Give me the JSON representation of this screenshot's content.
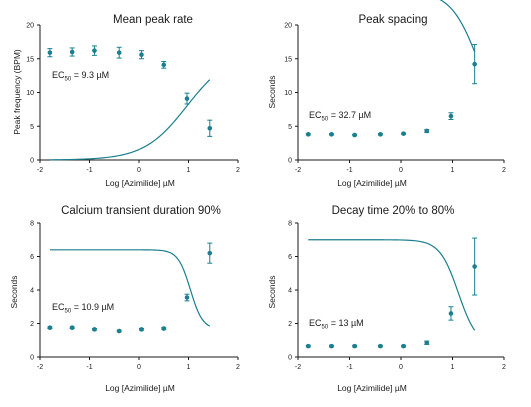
{
  "colors": {
    "series": "#1a7f8e",
    "axis": "#1a1a1a"
  },
  "chart_data": [
    {
      "type": "scatter",
      "title": "Mean peak rate",
      "xlabel": "Log [Azimilide] µM",
      "ylabel": "Peak frequency (BPM)",
      "xlim": [
        -2,
        2
      ],
      "ylim": [
        0,
        20
      ],
      "xticks": [
        -2,
        -1,
        0,
        1,
        2
      ],
      "xtick_labels": [
        "-2",
        "-1",
        "0",
        "1",
        "2"
      ],
      "yticks": [
        0,
        5,
        10,
        15,
        20
      ],
      "ytick_labels": [
        "0",
        "5",
        "10",
        "15",
        "20"
      ],
      "ec50_prefix": "EC",
      "ec50_sub": "50",
      "ec50_value": " = 9.3 µM",
      "x": [
        -1.8,
        -1.35,
        -0.9,
        -0.4,
        0.05,
        0.5,
        0.97,
        1.43
      ],
      "y": [
        15.9,
        16.0,
        16.2,
        15.9,
        15.6,
        14.1,
        9.1,
        4.7
      ],
      "err": [
        0.6,
        0.6,
        0.7,
        0.8,
        0.6,
        0.5,
        0.8,
        1.2
      ],
      "curve": {
        "top": 16.0,
        "bottom": 0,
        "logEC50": 0.9685,
        "hill": -1
      }
    },
    {
      "type": "scatter",
      "title": "Peak spacing",
      "xlabel": "Log [Azimilide] µM",
      "ylabel": "Seconds",
      "xlim": [
        -2,
        2
      ],
      "ylim": [
        0,
        20
      ],
      "xticks": [
        -2,
        -1,
        0,
        1,
        2
      ],
      "xtick_labels": [
        "-2",
        "-1",
        "0",
        "1",
        "2"
      ],
      "yticks": [
        0,
        5,
        10,
        15,
        20
      ],
      "ytick_labels": [
        "0",
        "5",
        "10",
        "15",
        "20"
      ],
      "ec50_prefix": "EC",
      "ec50_sub": "50",
      "ec50_value": " = 32.7 µM",
      "x": [
        -1.8,
        -1.35,
        -0.9,
        -0.4,
        0.05,
        0.5,
        0.97,
        1.43
      ],
      "y": [
        3.8,
        3.8,
        3.7,
        3.8,
        3.9,
        4.3,
        6.5,
        14.2
      ],
      "err": [
        0.1,
        0.1,
        0.1,
        0.1,
        0.1,
        0.2,
        0.5,
        2.9
      ],
      "curve": {
        "top": 25,
        "bottom": 3.75,
        "logEC50": 1.5145,
        "hill": 1.6
      }
    },
    {
      "type": "scatter",
      "title": "Calcium transient duration 90%",
      "xlabel": "Log [Azimilide] µM",
      "ylabel": "Seconds",
      "xlim": [
        -2,
        2
      ],
      "ylim": [
        0,
        8
      ],
      "xticks": [
        -2,
        -1,
        0,
        1,
        2
      ],
      "xtick_labels": [
        "-2",
        "-1",
        "0",
        "1",
        "2"
      ],
      "yticks": [
        0,
        2,
        4,
        6,
        8
      ],
      "ytick_labels": [
        "0",
        "2",
        "4",
        "6",
        "8"
      ],
      "ec50_prefix": "EC",
      "ec50_sub": "50",
      "ec50_value": " = 10.9 µM",
      "x": [
        -1.8,
        -1.35,
        -0.9,
        -0.4,
        0.05,
        0.5,
        0.97,
        1.43
      ],
      "y": [
        1.75,
        1.75,
        1.65,
        1.55,
        1.65,
        1.7,
        3.55,
        6.2
      ],
      "err": [
        0.05,
        0.05,
        0.05,
        0.05,
        0.05,
        0.05,
        0.2,
        0.6
      ],
      "curve": {
        "top": 6.4,
        "bottom": 1.65,
        "logEC50": 1.0374,
        "hill": 3.5
      }
    },
    {
      "type": "scatter",
      "title": "Decay time 20% to 80%",
      "xlabel": "Log [Azimilide] µM",
      "ylabel": "Seconds",
      "xlim": [
        -2,
        2
      ],
      "ylim": [
        0,
        8
      ],
      "xticks": [
        -2,
        -1,
        0,
        1,
        2
      ],
      "xtick_labels": [
        "-2",
        "-1",
        "0",
        "1",
        "2"
      ],
      "yticks": [
        0,
        2,
        4,
        6,
        8
      ],
      "ytick_labels": [
        "0",
        "2",
        "4",
        "6",
        "8"
      ],
      "ec50_prefix": "EC",
      "ec50_sub": "50",
      "ec50_value": " = 13 µM",
      "x": [
        -1.8,
        -1.35,
        -0.9,
        -0.4,
        0.05,
        0.5,
        0.97,
        1.43
      ],
      "y": [
        0.65,
        0.65,
        0.65,
        0.65,
        0.65,
        0.85,
        2.6,
        5.4
      ],
      "err": [
        0.05,
        0.05,
        0.05,
        0.05,
        0.05,
        0.1,
        0.4,
        1.7
      ],
      "curve": {
        "top": 7.0,
        "bottom": 0.65,
        "logEC50": 1.1139,
        "hill": 2.4
      }
    }
  ]
}
